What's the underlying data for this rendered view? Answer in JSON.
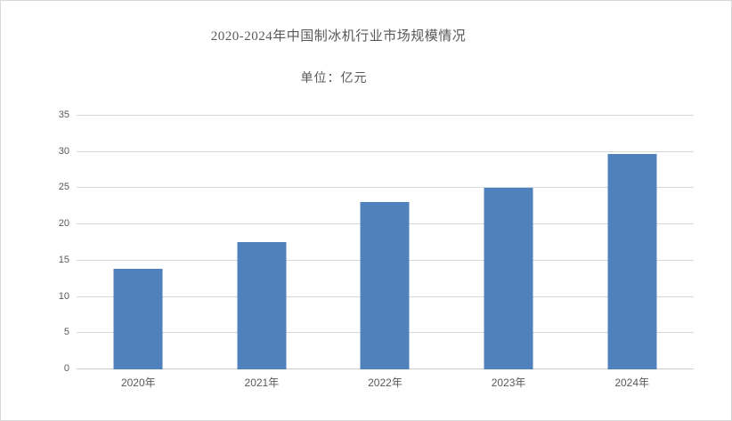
{
  "chart_data": {
    "type": "bar",
    "title": "2020-2024年中国制冰机行业市场规模情况",
    "unit_label": "单位：亿元",
    "categories": [
      "2020年",
      "2021年",
      "2022年",
      "2023年",
      "2024年"
    ],
    "values": [
      13.9,
      17.6,
      23.1,
      25.1,
      29.7
    ],
    "xlabel": "",
    "ylabel": "",
    "ylim": [
      0,
      35
    ],
    "yticks": [
      0,
      5,
      10,
      15,
      20,
      25,
      30,
      35
    ],
    "grid": "horizontal",
    "legend": "none",
    "bar_color": "#4f81bd",
    "gridline_color": "#d9d9d9",
    "text_color": "#595959",
    "background_color": "#ffffff"
  }
}
